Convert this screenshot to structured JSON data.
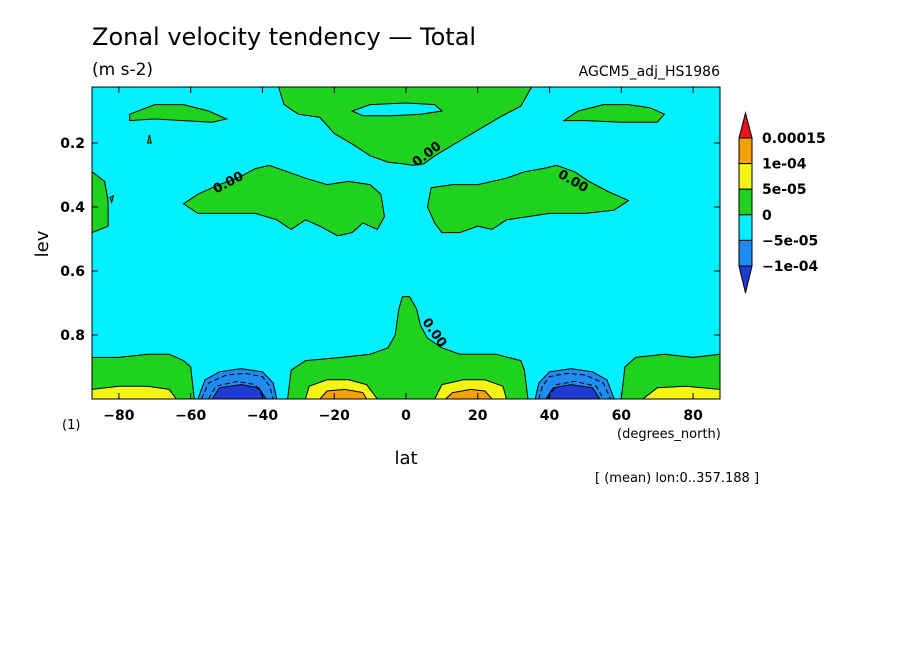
{
  "chart_data": {
    "type": "heatmap",
    "title": "Zonal velocity tendency — Total",
    "units": "(m s-2)",
    "dataset": "AGCM5_adj_HS1986",
    "xlabel": "lat",
    "xunits": "(degrees_north)",
    "ylabel": "lev",
    "ylabel_units": "(1)",
    "note": "[ (mean) lon:0..357.188 ]",
    "xlim": [
      -87.5,
      87.5
    ],
    "ylim": [
      1.0,
      0.025
    ],
    "x_ticks": [
      -80,
      -60,
      -40,
      -20,
      0,
      20,
      40,
      60,
      80
    ],
    "x_tick_labels": [
      "−80",
      "−60",
      "−40",
      "−20",
      "0",
      "20",
      "40",
      "60",
      "80"
    ],
    "y_ticks": [
      0.2,
      0.4,
      0.6,
      0.8
    ],
    "y_tick_labels": [
      "0.2",
      "0.4",
      "0.6",
      "0.8"
    ],
    "contour_label": "0.00",
    "colorbar": {
      "levels": [
        "0.00015",
        "1e-04",
        "5e-05",
        "0",
        "−5e-05",
        "−1e-04"
      ],
      "colors": [
        "#e8141c",
        "#f5a100",
        "#f5f514",
        "#1ed21e",
        "#00f0ff",
        "#1e8cf0",
        "#1e3cd2"
      ]
    },
    "fields": {
      "background": "#00f0ff",
      "positive": "#1ed21e",
      "level_5e05": "#f5f514",
      "level_1e04": "#f5a100",
      "level_15e05": "#e8141c",
      "negative": "#1e8cf0",
      "level_m1e04": "#1e3cd2"
    }
  }
}
